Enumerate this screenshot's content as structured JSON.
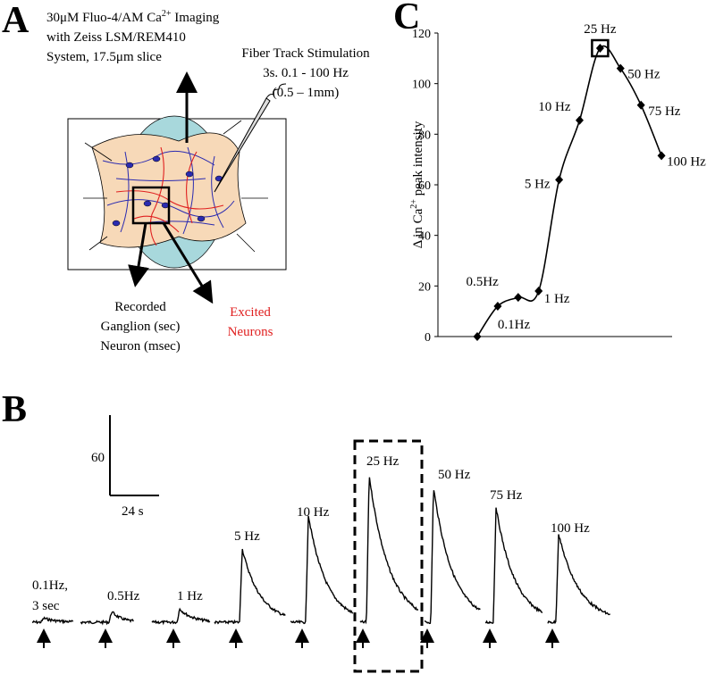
{
  "panel_labels": [
    "A",
    "B",
    "C"
  ],
  "panel_a": {
    "imaging": [
      "30μM Fluo-4/AM Ca",
      "2+",
      " Imaging"
    ],
    "imaging_lines": [
      "with Zeiss LSM/REM410",
      "System, 17.5μm slice"
    ],
    "stimulation": [
      "Fiber Track Stimulation",
      "3s. 0.1 - 100 Hz",
      "(0.5 – 1mm)"
    ],
    "recorded": [
      "Recorded",
      "Ganglion (sec)",
      "Neuron (msec)"
    ],
    "excited": [
      "Excited",
      "Neurons"
    ]
  },
  "chart_data": [
    {
      "type": "line",
      "categories": [
        null,
        "0.1Hz",
        "0.5Hz",
        "1 Hz",
        "5 Hz",
        "10 Hz",
        "25 Hz",
        "50 Hz",
        "75 Hz",
        "100 Hz"
      ],
      "values": [
        0,
        12,
        15.5,
        18,
        62,
        85.5,
        114,
        106,
        91.5,
        71.5
      ],
      "ylim": [
        0,
        120
      ],
      "yticks": [
        0,
        20,
        40,
        60,
        80,
        100,
        120
      ],
      "ylabel": [
        "Δ in Ca",
        "2+",
        " peak intensity"
      ],
      "highlight_index": 6,
      "marker": "diamond",
      "color": "#000000"
    },
    {
      "type": "trace",
      "labels": [
        [
          "0.1Hz,",
          "3 sec"
        ],
        [
          "0.5Hz"
        ],
        [
          "1 Hz"
        ],
        [
          "5 Hz"
        ],
        [
          "10 Hz"
        ],
        [
          "25 Hz"
        ],
        [
          "50 Hz"
        ],
        [
          "75 Hz"
        ],
        [
          "100 Hz"
        ]
      ],
      "values": [
        3,
        8,
        10,
        55,
        80,
        110,
        101,
        86,
        66
      ],
      "scale_bar": {
        "y": 60,
        "x": {
          "value": 24,
          "label": "24 s"
        }
      },
      "highlight_index": 5,
      "color": "#000000"
    }
  ]
}
